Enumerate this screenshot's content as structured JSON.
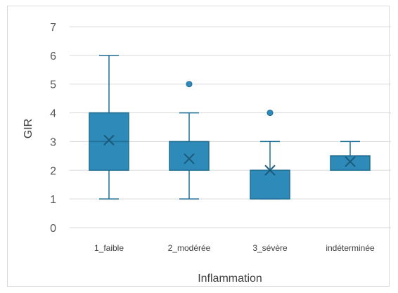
{
  "chart_data": {
    "type": "boxplot",
    "title": "",
    "xlabel": "Inflammation",
    "ylabel": "GIR",
    "ylim": [
      0,
      7
    ],
    "yticks": [
      0,
      1,
      2,
      3,
      4,
      5,
      6,
      7
    ],
    "grid": true,
    "legend": "none",
    "color": "#2e8ab8",
    "categories": [
      "1_faible",
      "2_modérée",
      "3_sévère",
      "indéterminée"
    ],
    "boxes": [
      {
        "category": "1_faible",
        "whisker_low": 1,
        "q1": 2,
        "median": 3,
        "q3": 4,
        "whisker_high": 6,
        "mean": 3.05,
        "outliers": []
      },
      {
        "category": "2_modérée",
        "whisker_low": 1,
        "q1": 2,
        "median": 2,
        "q3": 3,
        "whisker_high": 4,
        "mean": 2.4,
        "outliers": [
          5
        ]
      },
      {
        "category": "3_sévère",
        "whisker_low": 1,
        "q1": 1,
        "median": 2,
        "q3": 2,
        "whisker_high": 3,
        "mean": 2.0,
        "outliers": [
          4
        ]
      },
      {
        "category": "indéterminée",
        "whisker_low": 2,
        "q1": 2,
        "median": 2,
        "q3": 2.5,
        "whisker_high": 3,
        "mean": 2.3,
        "outliers": []
      }
    ]
  }
}
